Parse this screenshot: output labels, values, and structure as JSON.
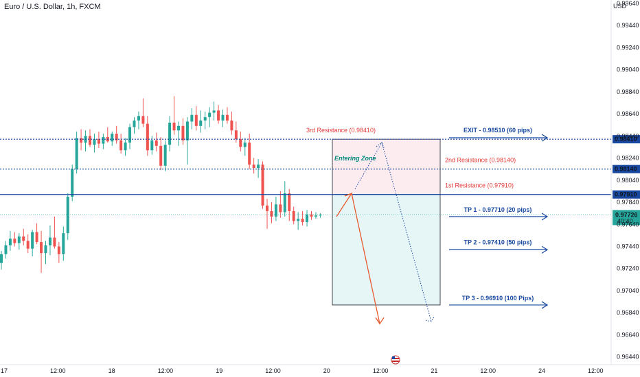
{
  "header": {
    "symbol_title": "Euro / U.S. Dollar, 1h, FXCM",
    "currency": "USD"
  },
  "colors": {
    "up": "#26a69a",
    "down": "#ef5350",
    "blue": "#1848a0",
    "red_label": "#e53935",
    "teal_label": "#00897b",
    "projection_orange": "#e65a2e"
  },
  "chart_data": {
    "type": "candlestick",
    "ylim": [
      0.9637,
      0.9967
    ],
    "y_ticks": [
      0.9964,
      0.9944,
      0.9924,
      0.9904,
      0.9884,
      0.9864,
      0.9844,
      0.9824,
      0.9804,
      0.9784,
      0.9764,
      0.9744,
      0.9724,
      0.9704,
      0.9684,
      0.9664,
      0.9644
    ],
    "y_tick_labels": [
      "0.99640",
      "0.99440",
      "0.99240",
      "0.99040",
      "0.98840",
      "0.98640",
      "0.98440",
      "0.98240",
      "0.98040",
      "0.97840",
      "0.97640",
      "0.97440",
      "0.97240",
      "0.97040",
      "0.96840",
      "0.96640",
      "0.96440"
    ],
    "x_tick_labels": [
      "17",
      "12:00",
      "18",
      "12:00",
      "19",
      "12:00",
      "20",
      "12:00",
      "21",
      "12:00",
      "24",
      "12:00"
    ],
    "candles": [
      {
        "o": 0.9729,
        "h": 0.974,
        "l": 0.9723,
        "c": 0.9737
      },
      {
        "o": 0.9737,
        "h": 0.9749,
        "l": 0.9733,
        "c": 0.9745
      },
      {
        "o": 0.9745,
        "h": 0.9758,
        "l": 0.974,
        "c": 0.9751
      },
      {
        "o": 0.9751,
        "h": 0.9757,
        "l": 0.9744,
        "c": 0.9747
      },
      {
        "o": 0.9747,
        "h": 0.9756,
        "l": 0.9741,
        "c": 0.9753
      },
      {
        "o": 0.9753,
        "h": 0.976,
        "l": 0.9745,
        "c": 0.9749
      },
      {
        "o": 0.9749,
        "h": 0.9755,
        "l": 0.9738,
        "c": 0.9742
      },
      {
        "o": 0.9742,
        "h": 0.9759,
        "l": 0.9735,
        "c": 0.9757
      },
      {
        "o": 0.9757,
        "h": 0.9765,
        "l": 0.9746,
        "c": 0.9748
      },
      {
        "o": 0.9748,
        "h": 0.9758,
        "l": 0.972,
        "c": 0.9738
      },
      {
        "o": 0.9738,
        "h": 0.9749,
        "l": 0.9728,
        "c": 0.9745
      },
      {
        "o": 0.9745,
        "h": 0.9763,
        "l": 0.9736,
        "c": 0.9752
      },
      {
        "o": 0.9752,
        "h": 0.9771,
        "l": 0.9742,
        "c": 0.9744
      },
      {
        "o": 0.9744,
        "h": 0.9748,
        "l": 0.9729,
        "c": 0.9737
      },
      {
        "o": 0.9737,
        "h": 0.9762,
        "l": 0.9731,
        "c": 0.9756
      },
      {
        "o": 0.9756,
        "h": 0.9792,
        "l": 0.975,
        "c": 0.9789
      },
      {
        "o": 0.9789,
        "h": 0.9818,
        "l": 0.9785,
        "c": 0.9814
      },
      {
        "o": 0.9814,
        "h": 0.9848,
        "l": 0.981,
        "c": 0.9842
      },
      {
        "o": 0.9842,
        "h": 0.985,
        "l": 0.9831,
        "c": 0.9838
      },
      {
        "o": 0.9838,
        "h": 0.9849,
        "l": 0.983,
        "c": 0.9844
      },
      {
        "o": 0.9844,
        "h": 0.985,
        "l": 0.9834,
        "c": 0.9836
      },
      {
        "o": 0.9836,
        "h": 0.9846,
        "l": 0.9829,
        "c": 0.9841
      },
      {
        "o": 0.9841,
        "h": 0.9848,
        "l": 0.9833,
        "c": 0.9837
      },
      {
        "o": 0.9837,
        "h": 0.9846,
        "l": 0.9832,
        "c": 0.9843
      },
      {
        "o": 0.9843,
        "h": 0.9852,
        "l": 0.9838,
        "c": 0.9839
      },
      {
        "o": 0.9839,
        "h": 0.9848,
        "l": 0.9835,
        "c": 0.9846
      },
      {
        "o": 0.9846,
        "h": 0.9853,
        "l": 0.9837,
        "c": 0.984
      },
      {
        "o": 0.984,
        "h": 0.9846,
        "l": 0.9828,
        "c": 0.9831
      },
      {
        "o": 0.9831,
        "h": 0.9842,
        "l": 0.9826,
        "c": 0.9838
      },
      {
        "o": 0.9838,
        "h": 0.9855,
        "l": 0.9832,
        "c": 0.9852
      },
      {
        "o": 0.9852,
        "h": 0.9861,
        "l": 0.9846,
        "c": 0.9858
      },
      {
        "o": 0.9858,
        "h": 0.9866,
        "l": 0.985,
        "c": 0.9862
      },
      {
        "o": 0.9862,
        "h": 0.9878,
        "l": 0.9852,
        "c": 0.9855
      },
      {
        "o": 0.9855,
        "h": 0.9862,
        "l": 0.9826,
        "c": 0.9831
      },
      {
        "o": 0.9831,
        "h": 0.9844,
        "l": 0.9827,
        "c": 0.984
      },
      {
        "o": 0.984,
        "h": 0.9847,
        "l": 0.983,
        "c": 0.9835
      },
      {
        "o": 0.9835,
        "h": 0.9843,
        "l": 0.9813,
        "c": 0.9817
      },
      {
        "o": 0.9817,
        "h": 0.984,
        "l": 0.9812,
        "c": 0.9836
      },
      {
        "o": 0.9836,
        "h": 0.9862,
        "l": 0.983,
        "c": 0.9856
      },
      {
        "o": 0.9856,
        "h": 0.988,
        "l": 0.9845,
        "c": 0.9849
      },
      {
        "o": 0.9849,
        "h": 0.9857,
        "l": 0.9835,
        "c": 0.9853
      },
      {
        "o": 0.9853,
        "h": 0.986,
        "l": 0.9836,
        "c": 0.984
      },
      {
        "o": 0.984,
        "h": 0.9861,
        "l": 0.9818,
        "c": 0.9857
      },
      {
        "o": 0.9857,
        "h": 0.9869,
        "l": 0.985,
        "c": 0.9863
      },
      {
        "o": 0.9863,
        "h": 0.9871,
        "l": 0.9849,
        "c": 0.9853
      },
      {
        "o": 0.9853,
        "h": 0.9867,
        "l": 0.9847,
        "c": 0.9858
      },
      {
        "o": 0.9858,
        "h": 0.9866,
        "l": 0.985,
        "c": 0.9861
      },
      {
        "o": 0.9861,
        "h": 0.987,
        "l": 0.9852,
        "c": 0.9865
      },
      {
        "o": 0.9865,
        "h": 0.9875,
        "l": 0.9858,
        "c": 0.9867
      },
      {
        "o": 0.9867,
        "h": 0.9872,
        "l": 0.9855,
        "c": 0.9858
      },
      {
        "o": 0.9858,
        "h": 0.9868,
        "l": 0.9852,
        "c": 0.9863
      },
      {
        "o": 0.9863,
        "h": 0.987,
        "l": 0.9855,
        "c": 0.9858
      },
      {
        "o": 0.9858,
        "h": 0.9866,
        "l": 0.9845,
        "c": 0.9849
      },
      {
        "o": 0.9849,
        "h": 0.9857,
        "l": 0.9838,
        "c": 0.9841
      },
      {
        "o": 0.9841,
        "h": 0.9848,
        "l": 0.983,
        "c": 0.9834
      },
      {
        "o": 0.9834,
        "h": 0.9842,
        "l": 0.9826,
        "c": 0.9838
      },
      {
        "o": 0.9838,
        "h": 0.9846,
        "l": 0.9814,
        "c": 0.9818
      },
      {
        "o": 0.9818,
        "h": 0.9824,
        "l": 0.981,
        "c": 0.9815
      },
      {
        "o": 0.9815,
        "h": 0.9823,
        "l": 0.9806,
        "c": 0.9818
      },
      {
        "o": 0.9818,
        "h": 0.9821,
        "l": 0.9778,
        "c": 0.9781
      },
      {
        "o": 0.9781,
        "h": 0.9787,
        "l": 0.976,
        "c": 0.9776
      },
      {
        "o": 0.9776,
        "h": 0.9784,
        "l": 0.9765,
        "c": 0.9771
      },
      {
        "o": 0.9771,
        "h": 0.9789,
        "l": 0.9767,
        "c": 0.9782
      },
      {
        "o": 0.9782,
        "h": 0.9794,
        "l": 0.977,
        "c": 0.9775
      },
      {
        "o": 0.9775,
        "h": 0.9803,
        "l": 0.9771,
        "c": 0.9792
      },
      {
        "o": 0.9792,
        "h": 0.9796,
        "l": 0.9767,
        "c": 0.9776
      },
      {
        "o": 0.9776,
        "h": 0.978,
        "l": 0.9764,
        "c": 0.9767
      },
      {
        "o": 0.9767,
        "h": 0.9775,
        "l": 0.9759,
        "c": 0.9769
      },
      {
        "o": 0.9769,
        "h": 0.9776,
        "l": 0.9763,
        "c": 0.9766
      },
      {
        "o": 0.9766,
        "h": 0.9777,
        "l": 0.9762,
        "c": 0.9773
      },
      {
        "o": 0.9773,
        "h": 0.9776,
        "l": 0.9768,
        "c": 0.9771
      },
      {
        "o": 0.9771,
        "h": 0.9775,
        "l": 0.9769,
        "c": 0.9772
      },
      {
        "o": 0.9772,
        "h": 0.9774,
        "l": 0.977,
        "c": 0.97726
      }
    ],
    "levels": [
      {
        "name": "3rd Resistance",
        "price": 0.9841,
        "price_label": "0.98410",
        "label": "3rd Resistance (0.98410)",
        "style": "dotted"
      },
      {
        "name": "2nd Resistance",
        "price": 0.9814,
        "price_label": "0.98140",
        "label": "2nd Resistance (0.98140)",
        "style": "dotted"
      },
      {
        "name": "1st Resistance",
        "price": 0.9791,
        "price_label": "0.97910",
        "label": "1st Resistance (0.97910)",
        "style": "solid"
      }
    ],
    "current_price": {
      "value": 0.97726,
      "label": "0.97726",
      "countdown": "40:40"
    },
    "targets": [
      {
        "label": "EXIT - 0.98510 (60 pips)",
        "price": 0.9851
      },
      {
        "label": "TP 1 - 0.97710 (20 pips)",
        "price": 0.9771
      },
      {
        "label": "TP 2 - 0.97410 (50 pips)",
        "price": 0.9741
      },
      {
        "label": "TP 3 - 0.96910 (100 Pips)",
        "price": 0.9691
      }
    ],
    "zone": {
      "label": "Entering Zone",
      "top": 0.9841,
      "mid": 0.9791,
      "bottom": 0.9691
    },
    "projections": {
      "solid_path": [
        [
          0.9771
        ],
        [
          0.9792
        ],
        [
          0.9674
        ]
      ],
      "dotted_path": [
        [
          0.9796
        ],
        [
          0.9838
        ],
        [
          0.9676
        ]
      ]
    }
  }
}
